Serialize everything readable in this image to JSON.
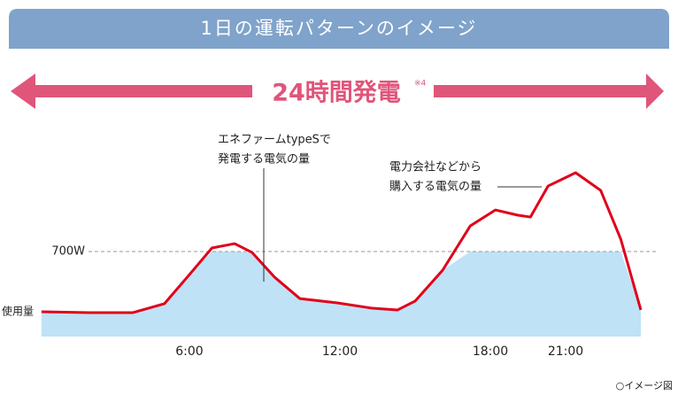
{
  "chart_data": {
    "type": "line",
    "title": "1日の運転パターンのイメージ",
    "banner": "24時間発電",
    "banner_note": "※4",
    "annotations": [
      [
        "エネファームtypeSで",
        "発電する電気の量"
      ],
      [
        "電力会社などから",
        "購入する電気の量"
      ]
    ],
    "footnote": "○イメージ図",
    "reference": {
      "value": 700,
      "label": "700W"
    },
    "xlim": [
      0,
      24
    ],
    "ylim": [
      0,
      1400
    ],
    "xticks": [
      {
        "value": 6,
        "label": "6:00"
      },
      {
        "value": 12,
        "label": "12:00"
      },
      {
        "value": 18,
        "label": "18:00"
      },
      {
        "value": 21,
        "label": "21:00"
      }
    ],
    "x": [
      0.1,
      2,
      3.75,
      5,
      6,
      6.9,
      7.8,
      8.5,
      9.4,
      10.4,
      11.9,
      13.3,
      14.3,
      15,
      16.1,
      17.2,
      18.2,
      19.1,
      19.6,
      20.3,
      21.4,
      22.4,
      23.2,
      24
    ],
    "series": [
      {
        "name": "使用量",
        "color": "#e0001b",
        "fill": "#bfe2f6",
        "values": [
          204,
          197,
          197,
          270,
          510,
          729,
          765,
          692,
          488,
          313,
          277,
          233,
          219,
          292,
          547,
          911,
          1042,
          999,
          984,
          1239,
          1349,
          1203,
          802,
          219
        ]
      }
    ]
  }
}
